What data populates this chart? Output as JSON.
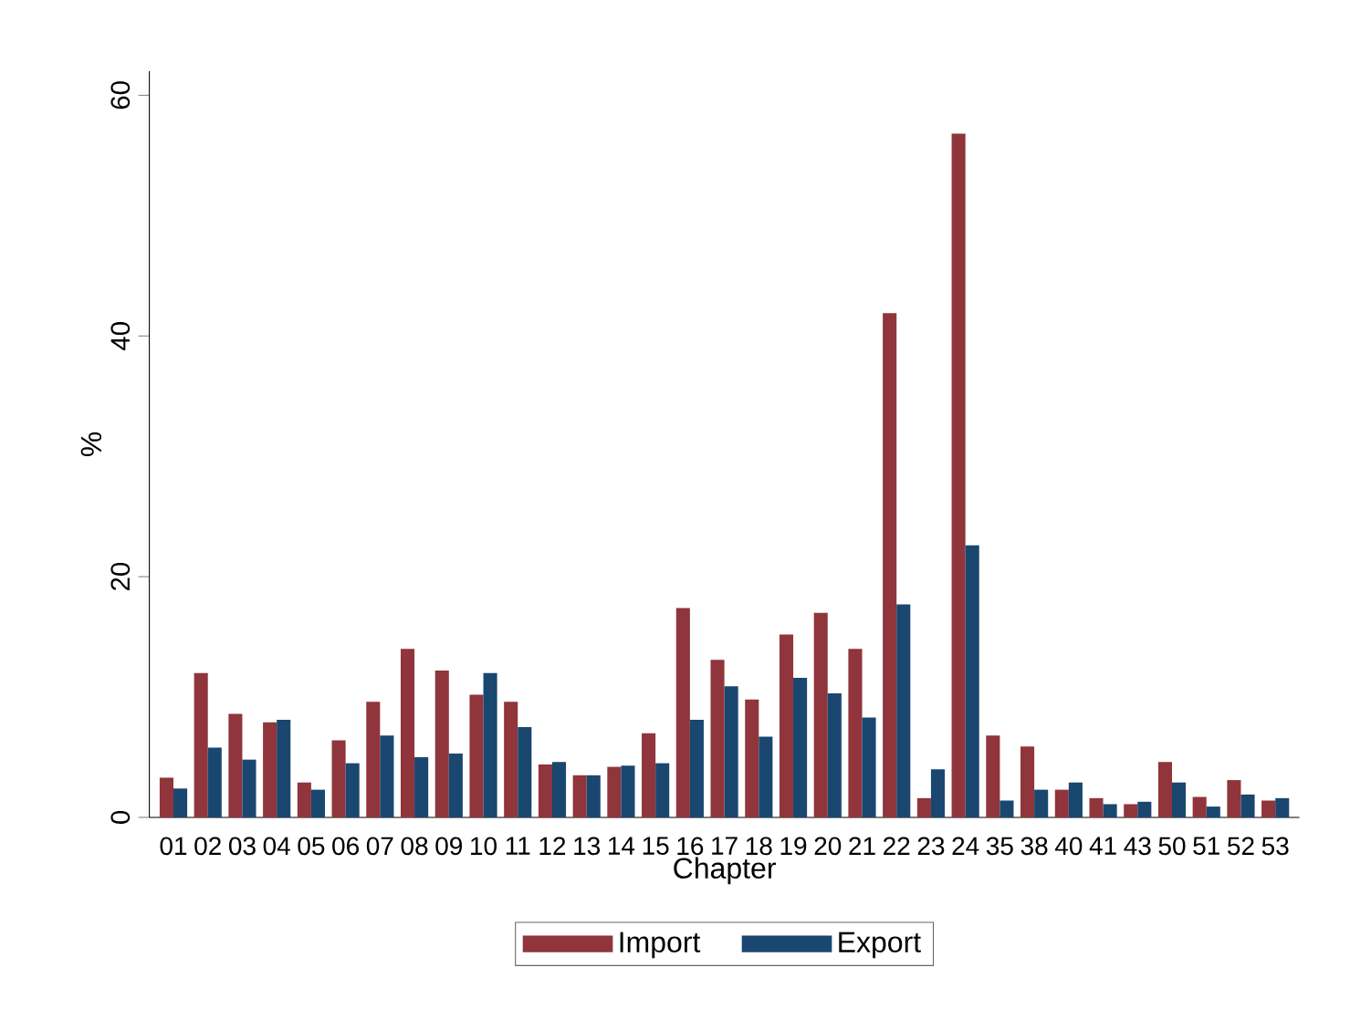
{
  "chart_data": {
    "type": "bar",
    "xlabel": "Chapter",
    "ylabel": "%",
    "categories": [
      "01",
      "02",
      "03",
      "04",
      "05",
      "06",
      "07",
      "08",
      "09",
      "10",
      "11",
      "12",
      "13",
      "14",
      "15",
      "16",
      "17",
      "18",
      "19",
      "20",
      "21",
      "22",
      "23",
      "24",
      "35",
      "38",
      "40",
      "41",
      "43",
      "50",
      "51",
      "52",
      "53"
    ],
    "series": [
      {
        "name": "Import",
        "color": "#90353b",
        "values": [
          3.3,
          12,
          8.6,
          7.9,
          2.9,
          6.4,
          9.6,
          14,
          12.2,
          10.2,
          9.6,
          4.4,
          3.5,
          4.2,
          7,
          17.4,
          13.1,
          9.8,
          15.2,
          17,
          14,
          41.9,
          1.6,
          56.8,
          6.8,
          5.9,
          2.3,
          1.6,
          1.1,
          4.6,
          1.7,
          3.1,
          1.4
        ]
      },
      {
        "name": "Export",
        "color": "#1a476f",
        "values": [
          2.4,
          5.8,
          4.8,
          8.1,
          2.3,
          4.5,
          6.8,
          5,
          5.3,
          12,
          7.5,
          4.6,
          3.5,
          4.3,
          4.5,
          8.1,
          10.9,
          6.7,
          11.6,
          10.3,
          8.3,
          17.7,
          4,
          22.6,
          1.4,
          2.3,
          2.9,
          1.1,
          1.3,
          2.9,
          0.9,
          1.9,
          1.6
        ]
      }
    ],
    "ylim": [
      0,
      62
    ],
    "yticks": [
      0,
      20,
      40,
      60
    ],
    "grid": false,
    "legend": "bottom"
  }
}
